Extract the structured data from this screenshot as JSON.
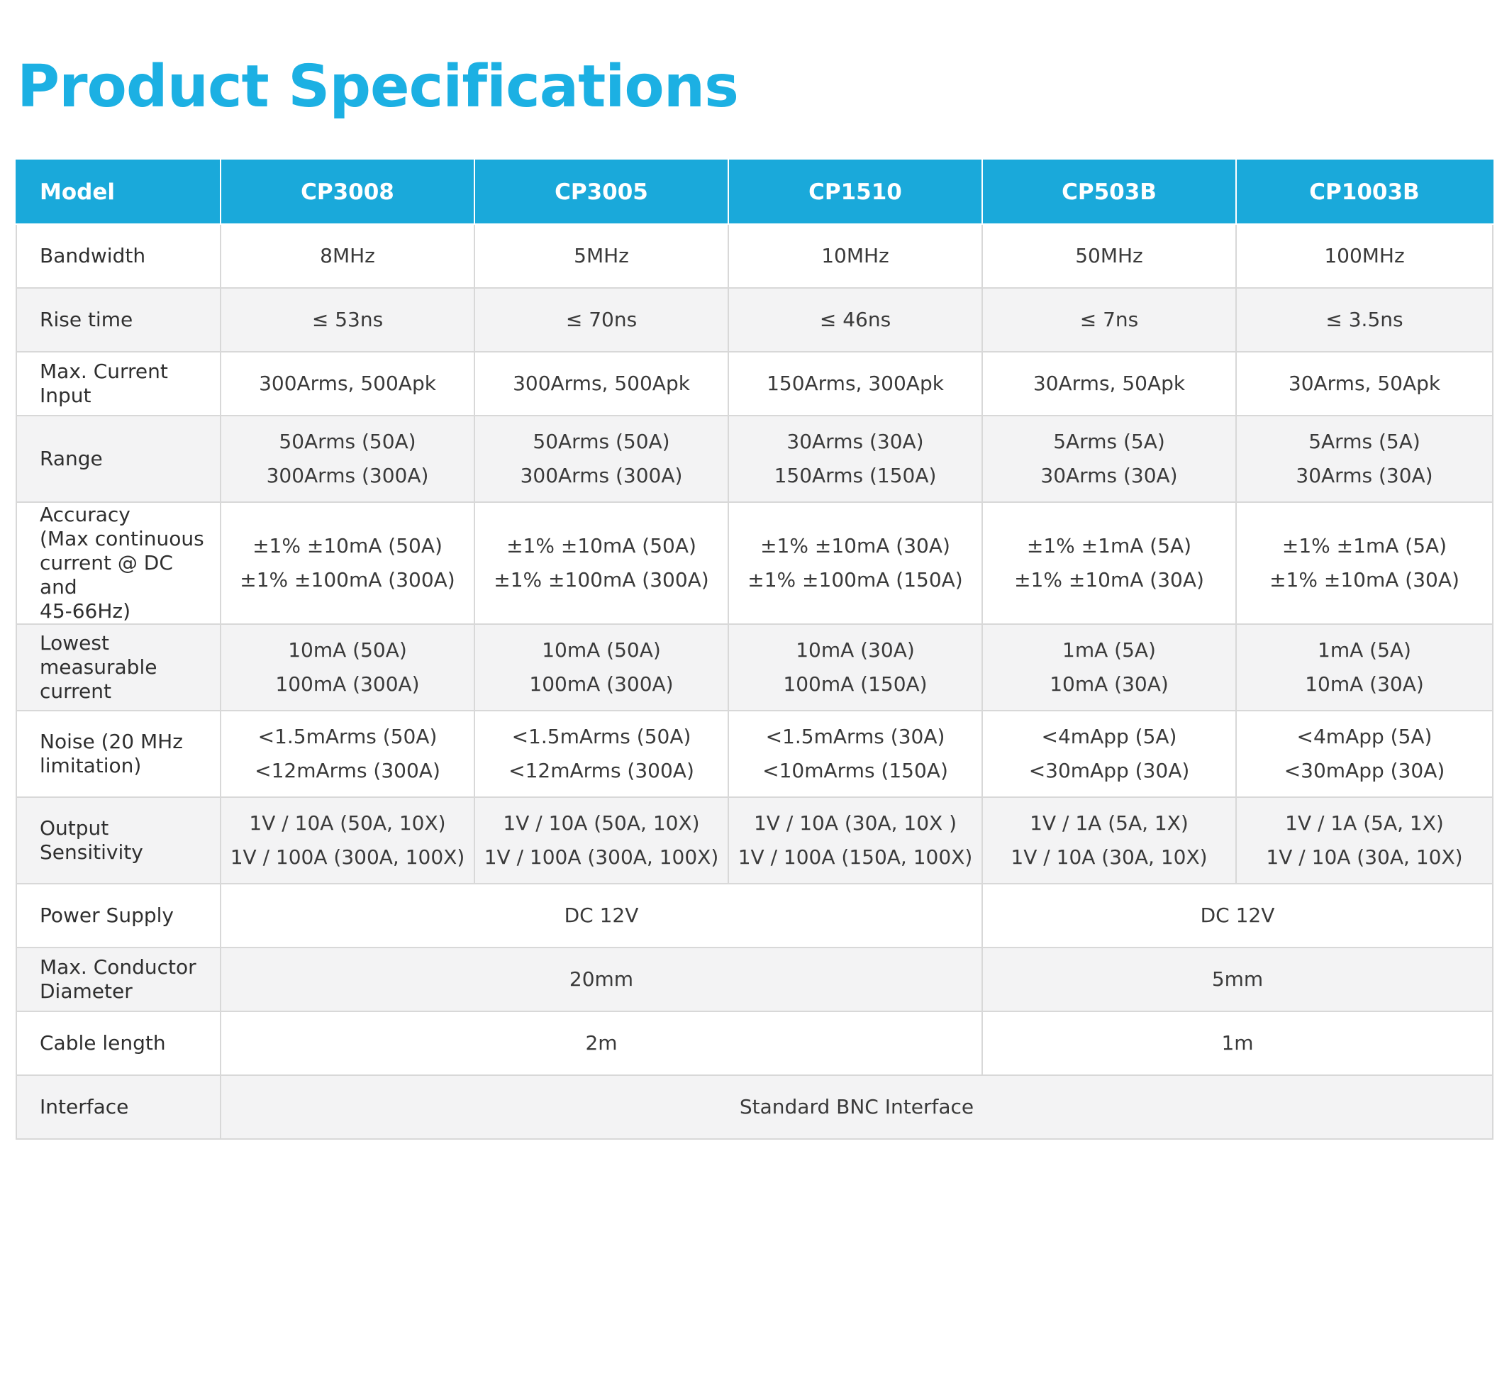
{
  "title": "Product Specifications",
  "table": {
    "header": {
      "label": "Model",
      "models": [
        "CP3008",
        "CP3005",
        "CP1510",
        "CP503B",
        "CP1003B"
      ]
    },
    "rows": [
      {
        "label": "Bandwidth",
        "cells": [
          "8MHz",
          "5MHz",
          "10MHz",
          "50MHz",
          "100MHz"
        ]
      },
      {
        "label": "Rise time",
        "cells": [
          "≤ 53ns",
          "≤ 70ns",
          "≤ 46ns",
          "≤ 7ns",
          "≤ 3.5ns"
        ]
      },
      {
        "label": "Max. Current Input",
        "cells": [
          "300Arms, 500Apk",
          "300Arms, 500Apk",
          "150Arms, 300Apk",
          "30Arms, 50Apk",
          "30Arms, 50Apk"
        ]
      },
      {
        "label": "Range",
        "cells": [
          [
            "50Arms (50A)",
            "300Arms (300A)"
          ],
          [
            "50Arms (50A)",
            "300Arms (300A)"
          ],
          [
            "30Arms (30A)",
            "150Arms (150A)"
          ],
          [
            "5Arms (5A)",
            "30Arms (30A)"
          ],
          [
            "5Arms (5A)",
            "30Arms (30A)"
          ]
        ]
      },
      {
        "label_lines": [
          "Accuracy",
          "(Max continuous",
          "current @ DC and",
          "45-66Hz)"
        ],
        "cells": [
          [
            "±1% ±10mA (50A)",
            "±1% ±100mA (300A)"
          ],
          [
            "±1% ±10mA (50A)",
            "±1% ±100mA (300A)"
          ],
          [
            "±1% ±10mA (30A)",
            "±1% ±100mA (150A)"
          ],
          [
            "±1% ±1mA (5A)",
            "±1% ±10mA (30A)"
          ],
          [
            "±1% ±1mA (5A)",
            "±1% ±10mA (30A)"
          ]
        ]
      },
      {
        "label_lines": [
          "Lowest",
          "measurable",
          "current"
        ],
        "cells": [
          [
            "10mA (50A)",
            "100mA (300A)"
          ],
          [
            "10mA (50A)",
            "100mA (300A)"
          ],
          [
            "10mA (30A)",
            "100mA (150A)"
          ],
          [
            "1mA (5A)",
            "10mA (30A)"
          ],
          [
            "1mA (5A)",
            "10mA (30A)"
          ]
        ]
      },
      {
        "label_lines": [
          "Noise (20 MHz",
          "limitation)"
        ],
        "cells": [
          [
            "<1.5mArms (50A)",
            "<12mArms (300A)"
          ],
          [
            "<1.5mArms (50A)",
            "<12mArms (300A)"
          ],
          [
            "<1.5mArms (30A)",
            "<10mArms (150A)"
          ],
          [
            "<4mApp (5A)",
            "<30mApp (30A)"
          ],
          [
            "<4mApp (5A)",
            "<30mApp (30A)"
          ]
        ]
      },
      {
        "label": "Output Sensitivity",
        "cells": [
          [
            "1V / 10A (50A, 10X)",
            "1V / 100A (300A, 100X)"
          ],
          [
            "1V / 10A (50A, 10X)",
            "1V / 100A (300A, 100X)"
          ],
          [
            "1V / 10A (30A, 10X )",
            "1V / 100A (150A, 100X)"
          ],
          [
            "1V / 1A (5A, 1X)",
            "1V / 10A (30A, 10X)"
          ],
          [
            "1V / 1A (5A, 1X)",
            "1V / 10A (30A, 10X)"
          ]
        ]
      },
      {
        "label": "Power Supply",
        "group_a": "DC 12V",
        "group_b": "DC 12V"
      },
      {
        "label_lines": [
          "Max. Conductor",
          "Diameter"
        ],
        "group_a": "20mm",
        "group_b": "5mm"
      },
      {
        "label": "Cable length",
        "group_a": "2m",
        "group_b": "1m"
      },
      {
        "label": "Interface",
        "all": "Standard BNC Interface"
      }
    ]
  }
}
